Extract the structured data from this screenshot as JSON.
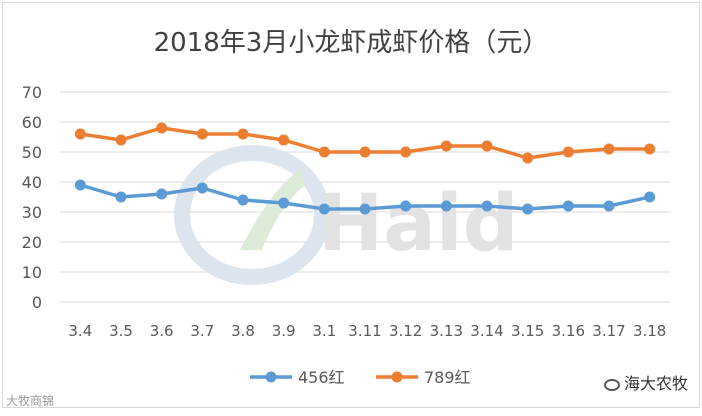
{
  "chart_data": {
    "type": "line",
    "title": "2018年3月小龙虾成虾价格（元）",
    "categories": [
      "3.4",
      "3.5",
      "3.6",
      "3.7",
      "3.8",
      "3.9",
      "3.1",
      "3.11",
      "3.12",
      "3.13",
      "3.14",
      "3.15",
      "3.16",
      "3.17",
      "3.18"
    ],
    "series": [
      {
        "name": "456红",
        "color": "#5b9bd5",
        "values": [
          39,
          35,
          36,
          38,
          34,
          33,
          31,
          31,
          32,
          32,
          32,
          31,
          32,
          32,
          35
        ]
      },
      {
        "name": "789红",
        "color": "#ed7d31",
        "values": [
          56,
          54,
          58,
          56,
          56,
          54,
          50,
          50,
          50,
          52,
          52,
          48,
          50,
          51,
          51
        ]
      }
    ],
    "ylim": [
      0,
      70
    ],
    "yticks": [
      0,
      10,
      20,
      30,
      40,
      50,
      60,
      70
    ],
    "grid": true,
    "legend": "bottom"
  },
  "watermark": "Haid",
  "footer_left": "大牧商锦",
  "brand": "海大农牧"
}
